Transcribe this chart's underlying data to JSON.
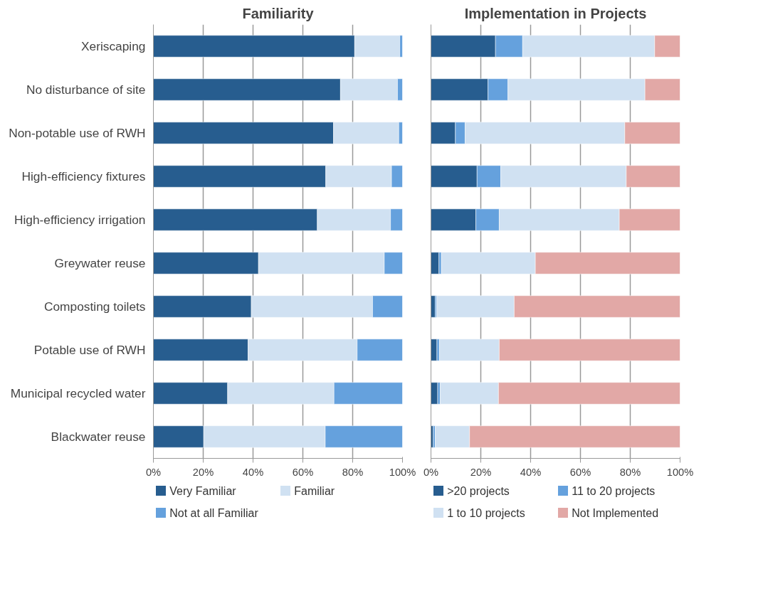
{
  "chart_data": [
    {
      "type": "bar",
      "orientation": "horizontal",
      "stacked": true,
      "title": "Familiarity",
      "categories": [
        "Xeriscaping",
        "No disturbance of site",
        "Non-potable use of RWH",
        "High-efficiency fixtures",
        "High-efficiency irrigation",
        "Greywater reuse",
        "Composting toilets",
        "Potable use of RWH",
        "Municipal recycled water",
        "Blackwater reuse"
      ],
      "series": [
        {
          "name": "Very Familiar",
          "color": "#275d8f",
          "values": [
            80.8,
            75.1,
            72.3,
            69.2,
            65.8,
            42.2,
            39.3,
            38.0,
            29.8,
            20.2
          ]
        },
        {
          "name": "Familiar",
          "color": "#d0e1f2",
          "values": [
            18.1,
            22.9,
            26.2,
            26.4,
            29.4,
            50.5,
            48.7,
            43.8,
            42.7,
            48.8
          ]
        },
        {
          "name": "Not at all Familiar",
          "color": "#65a1dd",
          "values": [
            1.1,
            2.0,
            1.5,
            4.4,
            4.8,
            7.3,
            12.0,
            18.2,
            27.5,
            31.0
          ]
        }
      ],
      "xlim": [
        0,
        100
      ],
      "xticks": [
        {
          "value": 0,
          "label": "0%"
        },
        {
          "value": 20,
          "label": "20%"
        },
        {
          "value": 40,
          "label": "40%"
        },
        {
          "value": 60,
          "label": "60%"
        },
        {
          "value": 80,
          "label": "80%"
        },
        {
          "value": 100,
          "label": "100%"
        }
      ],
      "grid": "x",
      "legend": "bottom"
    },
    {
      "type": "bar",
      "orientation": "horizontal",
      "stacked": true,
      "title": "Implementation in Projects",
      "categories": [
        null,
        null,
        null,
        null,
        null,
        null,
        null,
        null,
        null,
        null
      ],
      "series": [
        {
          "name": ">20 projects",
          "color": "#275d8f",
          "values": [
            25.9,
            22.9,
            9.8,
            18.5,
            18.0,
            3.2,
            1.7,
            2.4,
            2.7,
            0.9
          ]
        },
        {
          "name": "11 to 20 projects",
          "color": "#65a1dd",
          "values": [
            10.9,
            8.0,
            3.9,
            9.5,
            9.4,
            1.0,
            0.6,
            1.0,
            1.0,
            0.8
          ]
        },
        {
          "name": "1 to 10 projects",
          "color": "#d0e1f2",
          "values": [
            53.0,
            55.0,
            64.1,
            50.4,
            48.2,
            37.7,
            31.1,
            24.0,
            23.4,
            13.8
          ]
        },
        {
          "name": "Not Implemented",
          "color": "#e2a8a6",
          "values": [
            10.2,
            14.1,
            22.2,
            21.6,
            24.4,
            58.1,
            66.6,
            72.6,
            72.9,
            84.5
          ]
        }
      ],
      "xlim": [
        0,
        100
      ],
      "xticks": [
        {
          "value": 0,
          "label": "0%"
        },
        {
          "value": 20,
          "label": "20%"
        },
        {
          "value": 40,
          "label": "40%"
        },
        {
          "value": 60,
          "label": "60%"
        },
        {
          "value": 80,
          "label": "80%"
        },
        {
          "value": 100,
          "label": "100%"
        }
      ],
      "grid": "x",
      "legend": "bottom",
      "tick_labels": "x"
    }
  ]
}
